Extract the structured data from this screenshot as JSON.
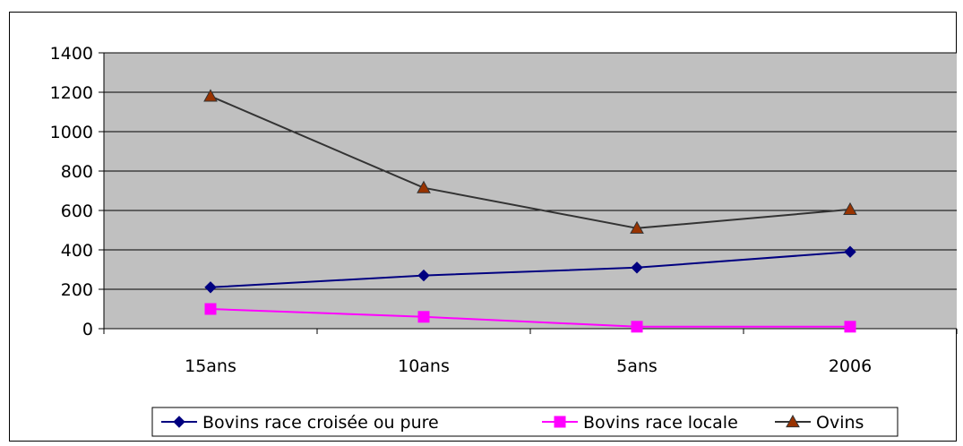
{
  "chart_data": {
    "type": "line",
    "categories": [
      "15ans",
      "10ans",
      "5ans",
      "2006"
    ],
    "series": [
      {
        "name": "Bovins race croisée ou pure",
        "values": [
          210,
          270,
          310,
          390
        ],
        "color": "#000080",
        "marker": "diamond"
      },
      {
        "name": "Bovins race locale",
        "values": [
          100,
          60,
          10,
          10
        ],
        "color": "#ff00ff",
        "marker": "square"
      },
      {
        "name": "Ovins",
        "values": [
          1180,
          715,
          510,
          605
        ],
        "color": "#333333",
        "marker": "triangle",
        "marker_fill": "#993300"
      }
    ],
    "ylim": [
      0,
      1400
    ],
    "yticks": [
      "0",
      "200",
      "400",
      "600",
      "800",
      "1000",
      "1200",
      "1400"
    ],
    "plot_background": "#c0c0c0",
    "grid": true,
    "legend_position": "bottom"
  }
}
